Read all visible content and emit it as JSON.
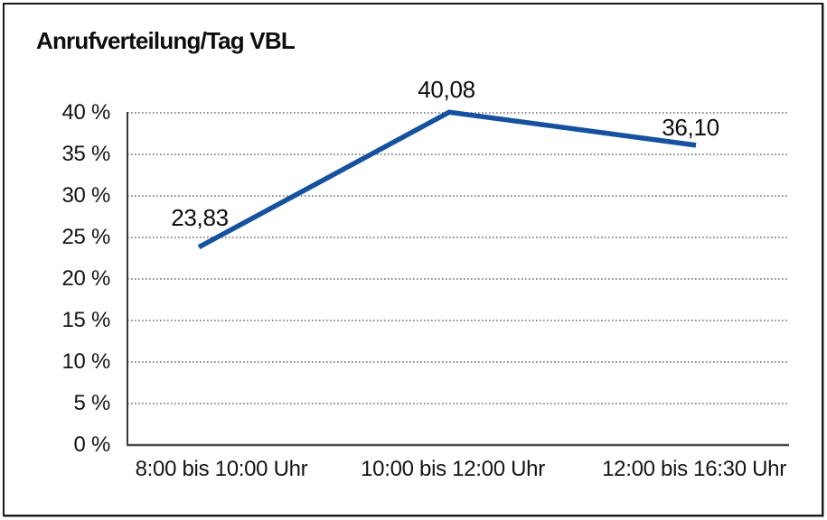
{
  "frame": {
    "background": "#ffffff",
    "border_color": "#1a1a1a"
  },
  "chart_data": {
    "type": "line",
    "title": "Anrufverteilung/Tag VBL",
    "categories": [
      "8:00 bis 10:00 Uhr",
      "10:00 bis 12:00 Uhr",
      "12:00 bis 16:30 Uhr"
    ],
    "values": [
      23.83,
      40.08,
      36.1
    ],
    "value_labels": [
      "23,83",
      "40,08",
      "36,10"
    ],
    "series_name": "Anrufverteilung",
    "xlabel": "",
    "ylabel": "",
    "ylim": [
      0,
      40
    ],
    "y_tick_values": [
      0,
      5,
      10,
      15,
      20,
      25,
      30,
      35,
      40
    ],
    "y_tick_labels": [
      "0 %",
      "5 %",
      "10 %",
      "15 %",
      "20 %",
      "25 %",
      "30 %",
      "35 %",
      "40 %"
    ],
    "grid": "horizontal-dotted",
    "legend": "none",
    "colors": {
      "line": "#15519e",
      "grid": "#4d4d4d",
      "axis": "#3a3a3a",
      "text": "#141414"
    }
  }
}
